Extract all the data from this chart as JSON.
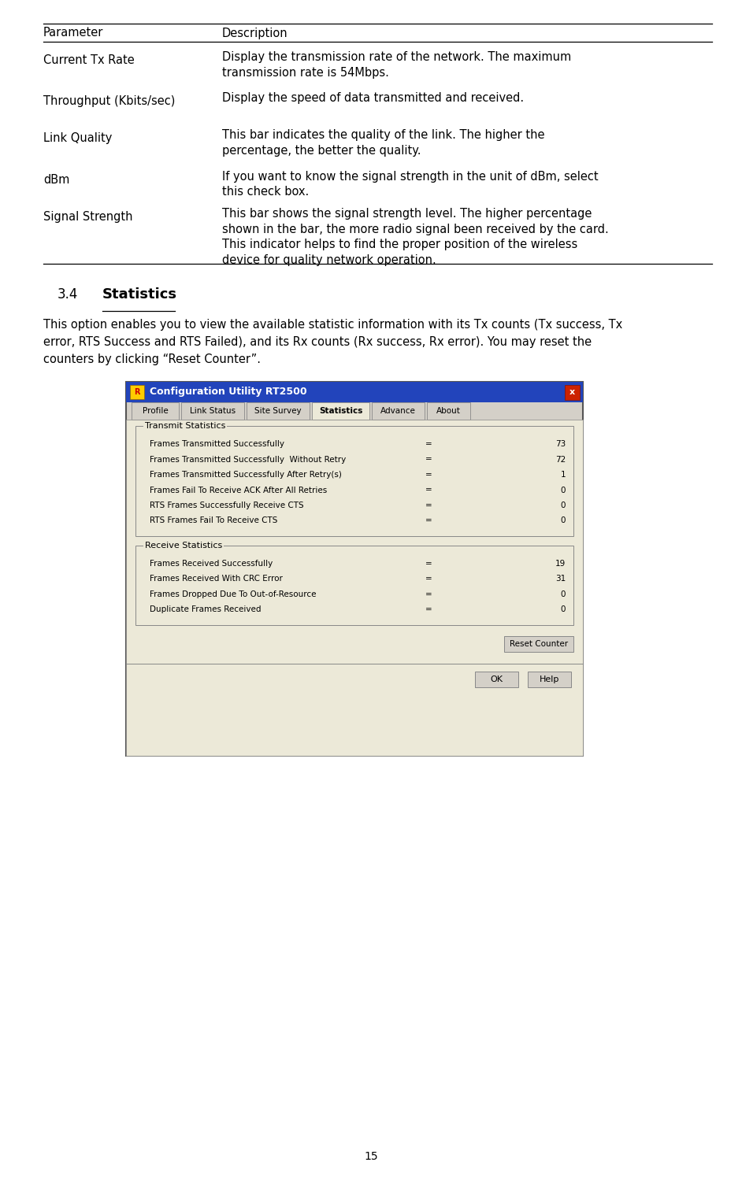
{
  "page_width": 9.42,
  "page_height": 14.95,
  "bg_color": "#ffffff",
  "table_header_row": [
    "Parameter",
    "Description"
  ],
  "table_rows": [
    {
      "param": "Current Tx Rate",
      "desc": "Display the transmission rate of the network. The maximum\ntransmission rate is 54Mbps."
    },
    {
      "param": "Throughput (Kbits/sec)",
      "desc": "Display the speed of data transmitted and received."
    },
    {
      "param": "Link Quality",
      "desc": "This bar indicates the quality of the link. The higher the\npercentage, the better the quality."
    },
    {
      "param": "dBm",
      "desc": "If you want to know the signal strength in the unit of dBm, select\nthis check box."
    },
    {
      "param": "Signal Strength",
      "desc": "This bar shows the signal strength level. The higher percentage\nshown in the bar, the more radio signal been received by the card.\nThis indicator helps to find the proper position of the wireless\ndevice for quality network operation."
    }
  ],
  "section_number": "3.4",
  "section_title": "Statistics",
  "section_body_lines": [
    "This option enables you to view the available statistic information with its Tx counts (Tx success, Tx",
    "error, RTS Success and RTS Failed), and its Rx counts (Rx success, Rx error). You may reset the",
    "counters by clicking “Reset Counter”."
  ],
  "page_number": "15",
  "dialog_title": "Configuration Utility RT2500",
  "dialog_bg": "#d4d0c8",
  "dialog_inner_bg": "#ece9d8",
  "dialog_tabs": [
    "Profile",
    "Link Status",
    "Site Survey",
    "Statistics",
    "Advance",
    "About"
  ],
  "dialog_active_tab": "Statistics",
  "transmit_group_label": "Transmit Statistics",
  "transmit_rows": [
    {
      "label": "Frames Transmitted Successfully",
      "value": "73"
    },
    {
      "label": "Frames Transmitted Successfully  Without Retry",
      "value": "72"
    },
    {
      "label": "Frames Transmitted Successfully After Retry(s)",
      "value": "1"
    },
    {
      "label": "Frames Fail To Receive ACK After All Retries",
      "value": "0"
    },
    {
      "label": "RTS Frames Successfully Receive CTS",
      "value": "0"
    },
    {
      "label": "RTS Frames Fail To Receive CTS",
      "value": "0"
    }
  ],
  "receive_group_label": "Receive Statistics",
  "receive_rows": [
    {
      "label": "Frames Received Successfully",
      "value": "19"
    },
    {
      "label": "Frames Received With CRC Error",
      "value": "31"
    },
    {
      "label": "Frames Dropped Due To Out-of-Resource",
      "value": "0"
    },
    {
      "label": "Duplicate Frames Received",
      "value": "0"
    }
  ],
  "button_reset": "Reset Counter",
  "button_ok": "OK",
  "button_help": "Help"
}
